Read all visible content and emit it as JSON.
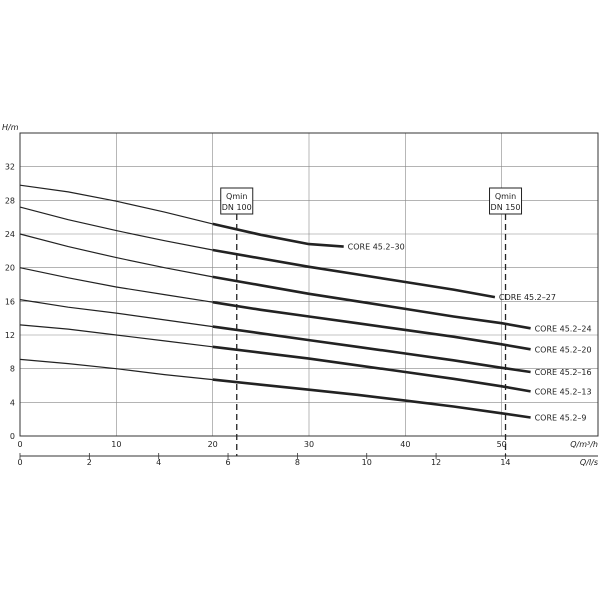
{
  "chart_data": {
    "type": "line",
    "ylabel": "H/m",
    "xlabel": "Q/m³/h",
    "x2label": "Q/l/s",
    "xlim": [
      0,
      60
    ],
    "ylim": [
      0,
      36
    ],
    "x2lim": [
      0,
      16.67
    ],
    "yticks": [
      "0",
      "4",
      "8",
      "12",
      "16",
      "20",
      "24",
      "28",
      "32"
    ],
    "xticks": [
      "0",
      "10",
      "20",
      "30",
      "40",
      "50"
    ],
    "x2ticks": [
      "0",
      "2",
      "4",
      "6",
      "8",
      "10",
      "12",
      "14"
    ],
    "grid": true,
    "colors": {
      "line": "#222222",
      "grid": "#888888",
      "axis": "#333333"
    },
    "markers": [
      {
        "line1": "Qmin",
        "line2": "DN 100",
        "x": 22.5
      },
      {
        "line1": "Qmin",
        "line2": "DN 150",
        "x": 50.4
      }
    ],
    "series": [
      {
        "name": "CORE 45.2–30",
        "thick_from": 20,
        "x": [
          0,
          5,
          10,
          15,
          20,
          25,
          30,
          33.6
        ],
        "y": [
          29.8,
          29.0,
          27.9,
          26.6,
          25.2,
          23.9,
          22.8,
          22.5
        ]
      },
      {
        "name": "CORE 45.2–27",
        "thick_from": 20,
        "x": [
          0,
          5,
          10,
          15,
          20,
          25,
          30,
          35,
          40,
          45,
          49.3
        ],
        "y": [
          27.2,
          25.7,
          24.4,
          23.2,
          22.1,
          21.1,
          20.1,
          19.2,
          18.3,
          17.4,
          16.5
        ]
      },
      {
        "name": "CORE 45.2–24",
        "thick_from": 20,
        "x": [
          0,
          5,
          10,
          15,
          20,
          25,
          30,
          35,
          40,
          45,
          50,
          53
        ],
        "y": [
          24.0,
          22.5,
          21.2,
          20.0,
          18.9,
          17.9,
          16.9,
          16.0,
          15.1,
          14.2,
          13.4,
          12.8
        ]
      },
      {
        "name": "CORE 45.2–20",
        "thick_from": 20,
        "x": [
          0,
          5,
          10,
          15,
          20,
          25,
          30,
          35,
          40,
          45,
          50,
          53
        ],
        "y": [
          20.0,
          18.8,
          17.7,
          16.8,
          15.9,
          15.0,
          14.2,
          13.4,
          12.6,
          11.8,
          10.9,
          10.3
        ]
      },
      {
        "name": "CORE 45.2–16",
        "thick_from": 20,
        "x": [
          0,
          5,
          10,
          15,
          20,
          25,
          30,
          35,
          40,
          45,
          50,
          53
        ],
        "y": [
          16.2,
          15.3,
          14.6,
          13.8,
          13.0,
          12.2,
          11.4,
          10.6,
          9.8,
          9.0,
          8.1,
          7.6
        ]
      },
      {
        "name": "CORE 45.2–13",
        "thick_from": 20,
        "x": [
          0,
          5,
          10,
          15,
          20,
          25,
          30,
          35,
          40,
          45,
          50,
          53
        ],
        "y": [
          13.2,
          12.7,
          12.0,
          11.3,
          10.6,
          9.9,
          9.2,
          8.4,
          7.6,
          6.8,
          5.9,
          5.3
        ]
      },
      {
        "name": "CORE 45.2–9",
        "thick_from": 20,
        "x": [
          0,
          5,
          10,
          15,
          20,
          25,
          30,
          35,
          40,
          45,
          50,
          53
        ],
        "y": [
          9.1,
          8.6,
          8.0,
          7.3,
          6.7,
          6.1,
          5.5,
          4.9,
          4.2,
          3.5,
          2.7,
          2.2
        ]
      }
    ]
  }
}
